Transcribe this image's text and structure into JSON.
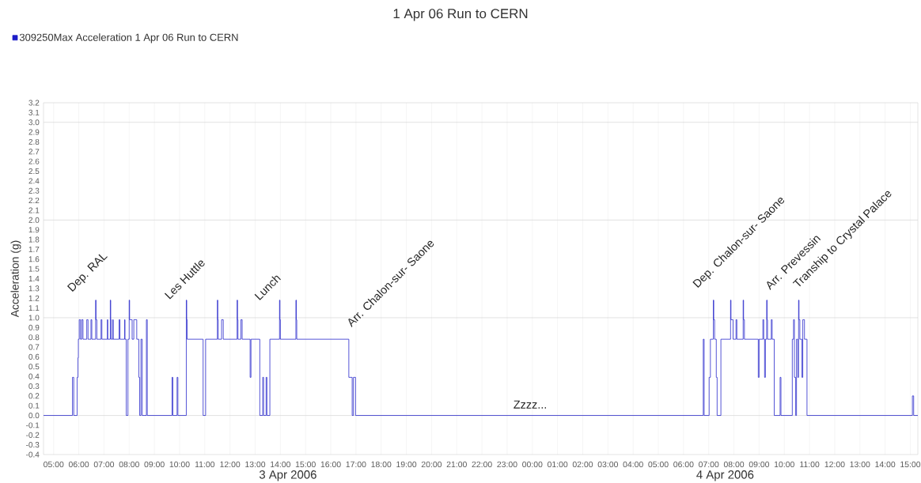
{
  "chart_data": {
    "type": "step",
    "title": "1 Apr 06 Run to CERN",
    "ylabel": "Acceleration (g)",
    "legend": "top left",
    "grid": true,
    "xlim": [
      "2006-04-03T04:36",
      "2006-04-04T15:18"
    ],
    "ylim": [
      -0.4,
      3.2
    ],
    "xticks": [
      {
        "value": "2006-04-03T05:00",
        "label": "05:00"
      },
      {
        "value": "2006-04-03T06:00",
        "label": "06:00"
      },
      {
        "value": "2006-04-03T07:00",
        "label": "07:00"
      },
      {
        "value": "2006-04-03T08:00",
        "label": "08:00"
      },
      {
        "value": "2006-04-03T09:00",
        "label": "09:00"
      },
      {
        "value": "2006-04-03T10:00",
        "label": "10:00"
      },
      {
        "value": "2006-04-03T11:00",
        "label": "11:00"
      },
      {
        "value": "2006-04-03T12:00",
        "label": "12:00"
      },
      {
        "value": "2006-04-03T13:00",
        "label": "13:00"
      },
      {
        "value": "2006-04-03T14:00",
        "label": "14:00"
      },
      {
        "value": "2006-04-03T15:00",
        "label": "15:00"
      },
      {
        "value": "2006-04-03T16:00",
        "label": "16:00"
      },
      {
        "value": "2006-04-03T17:00",
        "label": "17:00"
      },
      {
        "value": "2006-04-03T18:00",
        "label": "18:00"
      },
      {
        "value": "2006-04-03T19:00",
        "label": "19:00"
      },
      {
        "value": "2006-04-03T20:00",
        "label": "20:00"
      },
      {
        "value": "2006-04-03T21:00",
        "label": "21:00"
      },
      {
        "value": "2006-04-03T22:00",
        "label": "22:00"
      },
      {
        "value": "2006-04-03T23:00",
        "label": "23:00"
      },
      {
        "value": "2006-04-04T00:00",
        "label": "00:00"
      },
      {
        "value": "2006-04-04T01:00",
        "label": "01:00"
      },
      {
        "value": "2006-04-04T02:00",
        "label": "02:00"
      },
      {
        "value": "2006-04-04T03:00",
        "label": "03:00"
      },
      {
        "value": "2006-04-04T04:00",
        "label": "04:00"
      },
      {
        "value": "2006-04-04T05:00",
        "label": "05:00"
      },
      {
        "value": "2006-04-04T06:00",
        "label": "06:00"
      },
      {
        "value": "2006-04-04T07:00",
        "label": "07:00"
      },
      {
        "value": "2006-04-04T08:00",
        "label": "08:00"
      },
      {
        "value": "2006-04-04T09:00",
        "label": "09:00"
      },
      {
        "value": "2006-04-04T10:00",
        "label": "10:00"
      },
      {
        "value": "2006-04-04T11:00",
        "label": "11:00"
      },
      {
        "value": "2006-04-04T12:00",
        "label": "12:00"
      },
      {
        "value": "2006-04-04T13:00",
        "label": "13:00"
      },
      {
        "value": "2006-04-04T14:00",
        "label": "14:00"
      },
      {
        "value": "2006-04-04T15:00",
        "label": "15:00"
      }
    ],
    "yticks": [
      -0.4,
      -0.3,
      -0.2,
      -0.1,
      {
        "value": 0,
        "label": "0.0"
      },
      0.1,
      0.2,
      0.3,
      0.4,
      0.5,
      0.6,
      0.7,
      0.8,
      0.9,
      {
        "value": 1,
        "label": "1.0"
      },
      1.1,
      1.2,
      1.3,
      1.4,
      1.5,
      1.6,
      1.7,
      1.8,
      1.9,
      {
        "value": 2,
        "label": "2.0"
      },
      2.1,
      2.2,
      2.3,
      2.4,
      2.5,
      2.6,
      2.7,
      2.8,
      2.9,
      {
        "value": 3,
        "label": "3.0"
      },
      3.1,
      3.2
    ],
    "annotations": [
      "Dep. RAL",
      "Les Huttle",
      "Lunch",
      "Arr. Chalon-sur- Saone",
      "Zzzz...",
      "Dep. Chalon-sur- Saone",
      "Arr. Prevessin",
      "Tranship to Crystal Palace",
      "3 Apr 2006",
      "4 Apr 2006"
    ],
    "series": [
      {
        "name": "309250Max Acceleration 1 Apr 06 Run to CERN",
        "color": "#1c1cc8",
        "x": [
          "2006-04-03T04:36",
          "2006-04-03T05:45",
          "2006-04-03T05:48",
          "2006-04-03T05:56",
          "2006-04-03T05:58",
          "2006-04-03T05:59",
          "2006-04-03T06:01",
          "2006-04-03T06:04",
          "2006-04-03T06:07",
          "2006-04-03T06:10",
          "2006-04-03T06:19",
          "2006-04-03T06:22",
          "2006-04-03T06:29",
          "2006-04-03T06:31",
          "2006-04-03T06:40",
          "2006-04-03T06:41",
          "2006-04-03T06:43",
          "2006-04-03T06:53",
          "2006-04-03T06:55",
          "2006-04-03T07:08",
          "2006-04-03T07:09",
          "2006-04-03T07:15",
          "2006-04-03T07:16",
          "2006-04-03T07:17",
          "2006-04-03T07:21",
          "2006-04-03T07:22",
          "2006-04-03T07:36",
          "2006-04-03T07:38",
          "2006-04-03T07:49",
          "2006-04-03T07:50",
          "2006-04-03T07:53",
          "2006-04-03T07:57",
          "2006-04-03T08:00",
          "2006-04-03T08:01",
          "2006-04-03T08:07",
          "2006-04-03T08:11",
          "2006-04-03T08:18",
          "2006-04-03T08:23",
          "2006-04-03T08:25",
          "2006-04-03T08:28",
          "2006-04-03T08:31",
          "2006-04-03T08:41",
          "2006-04-03T08:43",
          "2006-04-03T09:42",
          "2006-04-03T09:44",
          "2006-04-03T09:54",
          "2006-04-03T09:56",
          "2006-04-03T10:16",
          "2006-04-03T10:17",
          "2006-04-03T10:18",
          "2006-04-03T10:56",
          "2006-04-03T11:02",
          "2006-04-03T11:30",
          "2006-04-03T11:31",
          "2006-04-03T11:32",
          "2006-04-03T11:40",
          "2006-04-03T11:44",
          "2006-04-03T12:17",
          "2006-04-03T12:18",
          "2006-04-03T12:19",
          "2006-04-03T12:26",
          "2006-04-03T12:29",
          "2006-04-03T12:48",
          "2006-04-03T12:50",
          "2006-04-03T13:11",
          "2006-04-03T13:18",
          "2006-04-03T13:20",
          "2006-04-03T13:26",
          "2006-04-03T13:28",
          "2006-04-03T13:35",
          "2006-04-03T13:58",
          "2006-04-03T13:59",
          "2006-04-03T14:00",
          "2006-04-03T14:37",
          "2006-04-03T14:38",
          "2006-04-03T14:39",
          "2006-04-03T16:43",
          "2006-04-03T16:51",
          "2006-04-03T16:54",
          "2006-04-03T16:59",
          "2006-04-04T06:47",
          "2006-04-04T06:49",
          "2006-04-04T07:01",
          "2006-04-04T07:04",
          "2006-04-04T07:11",
          "2006-04-04T07:12",
          "2006-04-04T07:14",
          "2006-04-04T07:18",
          "2006-04-04T07:20",
          "2006-04-04T07:29",
          "2006-04-04T07:52",
          "2006-04-04T07:53",
          "2006-04-04T07:58",
          "2006-04-04T08:05",
          "2006-04-04T08:07",
          "2006-04-04T08:22",
          "2006-04-04T08:23",
          "2006-04-04T08:25",
          "2006-04-04T08:58",
          "2006-04-04T09:00",
          "2006-04-04T09:09",
          "2006-04-04T09:11",
          "2006-04-04T09:13",
          "2006-04-04T09:15",
          "2006-04-04T09:18",
          "2006-04-04T09:19",
          "2006-04-04T09:20",
          "2006-04-04T09:29",
          "2006-04-04T09:31",
          "2006-04-04T09:36",
          "2006-04-04T09:50",
          "2006-04-04T09:52",
          "2006-04-04T10:19",
          "2006-04-04T10:22",
          "2006-04-04T10:24",
          "2006-04-04T10:27",
          "2006-04-04T10:29",
          "2006-04-04T10:32",
          "2006-04-04T10:34",
          "2006-04-04T10:35",
          "2006-04-04T10:37",
          "2006-04-04T10:42",
          "2006-04-04T10:44",
          "2006-04-04T10:48",
          "2006-04-04T10:54",
          "2006-04-04T15:05",
          "2006-04-04T15:08",
          "2006-04-04T15:18"
        ],
        "values": [
          0,
          0.39,
          0,
          0.39,
          0.59,
          0.78,
          0.98,
          0.78,
          0.98,
          0.78,
          0.98,
          0.78,
          0.98,
          0.78,
          1.18,
          0.98,
          0.78,
          0.98,
          0.78,
          0.98,
          0.78,
          1.18,
          0.98,
          0.78,
          0.98,
          0.78,
          0.98,
          0.78,
          0.98,
          0.78,
          0,
          0.78,
          1.18,
          0.98,
          0.78,
          0.98,
          0.78,
          0.39,
          0,
          0.78,
          0,
          0.98,
          0,
          0.39,
          0,
          0.39,
          0,
          1.18,
          0.98,
          0.78,
          0,
          0.78,
          1.18,
          0.98,
          0.78,
          0.98,
          0.78,
          1.18,
          0.98,
          0.78,
          0.98,
          0.78,
          0.39,
          0.78,
          0,
          0.39,
          0,
          0.39,
          0,
          0.78,
          1.18,
          0.98,
          0.78,
          1.18,
          0.98,
          0.78,
          0.39,
          0,
          0.39,
          0,
          0.78,
          0,
          0.39,
          0.78,
          1.18,
          0.98,
          0.78,
          0.39,
          0,
          0.78,
          1.18,
          0.98,
          0.78,
          0.98,
          0.78,
          1.18,
          0.98,
          0.78,
          0.39,
          0.78,
          0.98,
          0.78,
          0.39,
          0.78,
          1.18,
          0.98,
          0.78,
          0.98,
          0.78,
          0,
          0.39,
          0,
          0.78,
          0.98,
          0.39,
          0,
          0.78,
          0.39,
          1.18,
          0.98,
          0.78,
          0.39,
          0.98,
          0.78,
          0,
          0.2,
          0,
          0
        ]
      }
    ]
  }
}
